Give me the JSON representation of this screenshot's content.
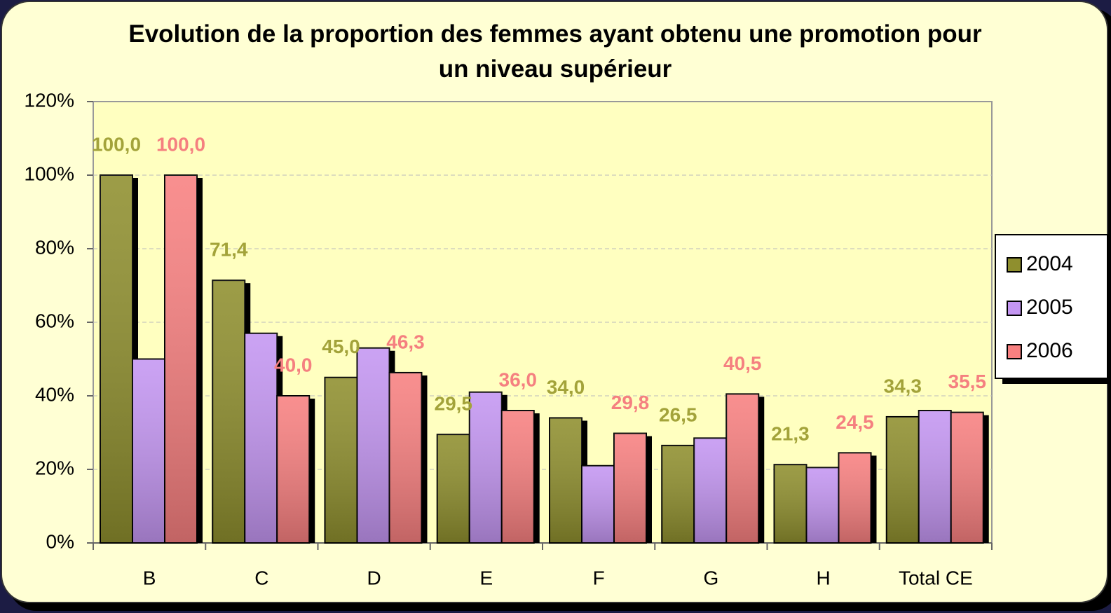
{
  "chart_data": {
    "type": "bar",
    "title": "Evolution de la proportion des femmes ayant obtenu une promotion pour un niveau supérieur",
    "categories": [
      "B",
      "C",
      "D",
      "E",
      "F",
      "G",
      "H",
      "Total CE"
    ],
    "series": [
      {
        "name": "2004",
        "color": "#8f8f2e",
        "label_color": "#a3a33a",
        "values": [
          100.0,
          71.4,
          45.0,
          29.5,
          34.0,
          26.5,
          21.3,
          34.3
        ],
        "value_labels": [
          "100,0",
          "71,4",
          "45,0",
          "29,5",
          "34,0",
          "26,5",
          "21,3",
          "34,3"
        ]
      },
      {
        "name": "2005",
        "color": "#c496f2",
        "values": [
          50,
          57,
          53,
          41,
          21,
          28.5,
          20.5,
          36
        ]
      },
      {
        "name": "2006",
        "color": "#f88080",
        "label_color": "#f58080",
        "values": [
          100.0,
          40.0,
          46.3,
          36.0,
          29.8,
          40.5,
          24.5,
          35.5
        ],
        "value_labels": [
          "100,0",
          "40,0",
          "46,3",
          "36,0",
          "29,8",
          "40,5",
          "24,5",
          "35,5"
        ]
      }
    ],
    "ylim": [
      0,
      120
    ],
    "yticks": [
      {
        "value": 0,
        "label": "0%"
      },
      {
        "value": 20,
        "label": "20%"
      },
      {
        "value": 40,
        "label": "40%"
      },
      {
        "value": 60,
        "label": "60%"
      },
      {
        "value": 80,
        "label": "80%"
      },
      {
        "value": 100,
        "label": "100%"
      },
      {
        "value": 120,
        "label": "120%"
      }
    ],
    "grid": true,
    "legend": "right"
  }
}
